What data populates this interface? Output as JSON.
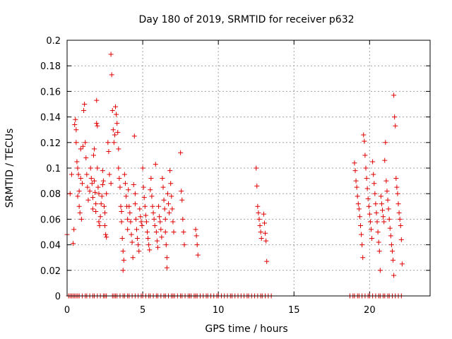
{
  "chart_data": {
    "type": "scatter",
    "title": "Day 180 of 2019, SRMTID for receiver p632",
    "xlabel": "GPS time / hours",
    "ylabel": "SRMTID / TECUs",
    "xlim": [
      0,
      24
    ],
    "ylim": [
      0,
      0.2
    ],
    "xticks": [
      0,
      5,
      10,
      15,
      20
    ],
    "xtick_labels": [
      "0",
      "5",
      "10",
      "15",
      "20"
    ],
    "yticks": [
      0,
      0.02,
      0.04,
      0.06,
      0.08,
      0.1,
      0.12,
      0.14,
      0.16,
      0.18,
      0.2
    ],
    "ytick_labels": [
      "0",
      "0.02",
      "0.04",
      "0.06",
      "0.08",
      "0.1",
      "0.12",
      "0.14",
      "0.16",
      "0.18",
      "0.2"
    ],
    "grid": true,
    "marker": "plus",
    "color": "#e00000",
    "series": [
      {
        "name": "SRMTID",
        "points": [
          [
            0.0,
            0.048
          ],
          [
            0.2,
            0.08
          ],
          [
            0.3,
            0.095
          ],
          [
            0.4,
            0.041
          ],
          [
            0.45,
            0.052
          ],
          [
            0.5,
            0.134
          ],
          [
            0.55,
            0.138
          ],
          [
            0.6,
            0.13
          ],
          [
            0.6,
            0.12
          ],
          [
            0.65,
            0.105
          ],
          [
            0.7,
            0.1
          ],
          [
            0.7,
            0.078
          ],
          [
            0.75,
            0.095
          ],
          [
            0.8,
            0.082
          ],
          [
            0.8,
            0.07
          ],
          [
            0.85,
            0.065
          ],
          [
            0.9,
            0.092
          ],
          [
            0.9,
            0.115
          ],
          [
            0.95,
            0.06
          ],
          [
            1.0,
            0.088
          ],
          [
            1.05,
            0.117
          ],
          [
            1.1,
            0.145
          ],
          [
            1.15,
            0.15
          ],
          [
            1.2,
            0.12
          ],
          [
            1.25,
            0.108
          ],
          [
            1.3,
            0.095
          ],
          [
            1.35,
            0.085
          ],
          [
            1.4,
            0.075
          ],
          [
            1.5,
            0.082
          ],
          [
            1.55,
            0.1
          ],
          [
            1.6,
            0.092
          ],
          [
            1.65,
            0.088
          ],
          [
            1.7,
            0.077
          ],
          [
            1.7,
            0.068
          ],
          [
            1.75,
            0.11
          ],
          [
            1.8,
            0.115
          ],
          [
            1.8,
            0.09
          ],
          [
            1.85,
            0.081
          ],
          [
            1.9,
            0.072
          ],
          [
            1.9,
            0.066
          ],
          [
            1.95,
            0.135
          ],
          [
            1.95,
            0.153
          ],
          [
            2.0,
            0.133
          ],
          [
            2.0,
            0.1
          ],
          [
            2.05,
            0.085
          ],
          [
            2.1,
            0.08
          ],
          [
            2.1,
            0.058
          ],
          [
            2.15,
            0.055
          ],
          [
            2.2,
            0.062
          ],
          [
            2.25,
            0.072
          ],
          [
            2.3,
            0.078
          ],
          [
            2.35,
            0.087
          ],
          [
            2.35,
            0.098
          ],
          [
            2.4,
            0.09
          ],
          [
            2.45,
            0.07
          ],
          [
            2.5,
            0.065
          ],
          [
            2.5,
            0.055
          ],
          [
            2.55,
            0.048
          ],
          [
            2.6,
            0.046
          ],
          [
            2.6,
            0.08
          ],
          [
            2.7,
            0.12
          ],
          [
            2.75,
            0.113
          ],
          [
            2.8,
            0.095
          ],
          [
            2.9,
            0.088
          ],
          [
            2.9,
            0.189
          ],
          [
            2.95,
            0.173
          ],
          [
            3.0,
            0.145
          ],
          [
            3.05,
            0.13
          ],
          [
            3.1,
            0.12
          ],
          [
            3.15,
            0.126
          ],
          [
            3.2,
            0.148
          ],
          [
            3.25,
            0.142
          ],
          [
            3.3,
            0.135
          ],
          [
            3.35,
            0.128
          ],
          [
            3.4,
            0.115
          ],
          [
            3.4,
            0.1
          ],
          [
            3.45,
            0.092
          ],
          [
            3.5,
            0.085
          ],
          [
            3.55,
            0.07
          ],
          [
            3.6,
            0.066
          ],
          [
            3.6,
            0.058
          ],
          [
            3.65,
            0.045
          ],
          [
            3.7,
            0.035
          ],
          [
            3.7,
            0.02
          ],
          [
            3.75,
            0.028
          ],
          [
            3.8,
            0.095
          ],
          [
            3.85,
            0.088
          ],
          [
            3.9,
            0.078
          ],
          [
            3.95,
            0.07
          ],
          [
            4.0,
            0.06
          ],
          [
            4.0,
            0.052
          ],
          [
            4.05,
            0.083
          ],
          [
            4.1,
            0.07
          ],
          [
            4.15,
            0.065
          ],
          [
            4.2,
            0.058
          ],
          [
            4.25,
            0.048
          ],
          [
            4.3,
            0.042
          ],
          [
            4.35,
            0.03
          ],
          [
            4.4,
            0.087
          ],
          [
            4.45,
            0.125
          ],
          [
            4.5,
            0.08
          ],
          [
            4.5,
            0.072
          ],
          [
            4.55,
            0.06
          ],
          [
            4.6,
            0.052
          ],
          [
            4.65,
            0.045
          ],
          [
            4.7,
            0.04
          ],
          [
            4.75,
            0.035
          ],
          [
            4.8,
            0.068
          ],
          [
            4.85,
            0.062
          ],
          [
            4.9,
            0.058
          ],
          [
            4.95,
            0.055
          ],
          [
            5.0,
            0.1
          ],
          [
            5.05,
            0.085
          ],
          [
            5.1,
            0.077
          ],
          [
            5.15,
            0.07
          ],
          [
            5.2,
            0.063
          ],
          [
            5.25,
            0.058
          ],
          [
            5.3,
            0.05
          ],
          [
            5.35,
            0.045
          ],
          [
            5.4,
            0.04
          ],
          [
            5.45,
            0.036
          ],
          [
            5.5,
            0.083
          ],
          [
            5.55,
            0.092
          ],
          [
            5.6,
            0.078
          ],
          [
            5.65,
            0.07
          ],
          [
            5.7,
            0.065
          ],
          [
            5.75,
            0.06
          ],
          [
            5.8,
            0.055
          ],
          [
            5.85,
            0.103
          ],
          [
            5.9,
            0.05
          ],
          [
            5.95,
            0.043
          ],
          [
            6.0,
            0.038
          ],
          [
            6.05,
            0.07
          ],
          [
            6.1,
            0.062
          ],
          [
            6.15,
            0.058
          ],
          [
            6.2,
            0.052
          ],
          [
            6.25,
            0.046
          ],
          [
            6.3,
            0.092
          ],
          [
            6.35,
            0.085
          ],
          [
            6.4,
            0.075
          ],
          [
            6.45,
            0.068
          ],
          [
            6.5,
            0.06
          ],
          [
            6.5,
            0.05
          ],
          [
            6.55,
            0.04
          ],
          [
            6.6,
            0.03
          ],
          [
            6.6,
            0.022
          ],
          [
            6.65,
            0.08
          ],
          [
            6.7,
            0.072
          ],
          [
            6.75,
            0.065
          ],
          [
            6.8,
            0.098
          ],
          [
            6.85,
            0.088
          ],
          [
            6.9,
            0.078
          ],
          [
            6.95,
            0.068
          ],
          [
            7.0,
            0.058
          ],
          [
            7.05,
            0.05
          ],
          [
            7.5,
            0.112
          ],
          [
            7.55,
            0.082
          ],
          [
            7.6,
            0.075
          ],
          [
            7.65,
            0.06
          ],
          [
            7.7,
            0.05
          ],
          [
            7.75,
            0.04
          ],
          [
            8.5,
            0.052
          ],
          [
            8.55,
            0.047
          ],
          [
            8.6,
            0.04
          ],
          [
            8.65,
            0.032
          ],
          [
            12.5,
            0.1
          ],
          [
            12.55,
            0.086
          ],
          [
            12.6,
            0.07
          ],
          [
            12.65,
            0.065
          ],
          [
            12.7,
            0.06
          ],
          [
            12.75,
            0.055
          ],
          [
            12.8,
            0.05
          ],
          [
            12.85,
            0.045
          ],
          [
            13.0,
            0.064
          ],
          [
            13.05,
            0.057
          ],
          [
            13.1,
            0.049
          ],
          [
            13.15,
            0.043
          ],
          [
            13.2,
            0.027
          ],
          [
            19.0,
            0.104
          ],
          [
            19.05,
            0.098
          ],
          [
            19.1,
            0.09
          ],
          [
            19.15,
            0.085
          ],
          [
            19.2,
            0.078
          ],
          [
            19.25,
            0.072
          ],
          [
            19.3,
            0.068
          ],
          [
            19.35,
            0.062
          ],
          [
            19.4,
            0.055
          ],
          [
            19.45,
            0.048
          ],
          [
            19.5,
            0.04
          ],
          [
            19.55,
            0.03
          ],
          [
            19.6,
            0.126
          ],
          [
            19.65,
            0.121
          ],
          [
            19.7,
            0.11
          ],
          [
            19.75,
            0.1
          ],
          [
            19.8,
            0.092
          ],
          [
            19.85,
            0.084
          ],
          [
            19.9,
            0.076
          ],
          [
            19.95,
            0.07
          ],
          [
            20.0,
            0.064
          ],
          [
            20.05,
            0.058
          ],
          [
            20.1,
            0.052
          ],
          [
            20.15,
            0.045
          ],
          [
            20.2,
            0.105
          ],
          [
            20.25,
            0.095
          ],
          [
            20.3,
            0.088
          ],
          [
            20.35,
            0.08
          ],
          [
            20.4,
            0.072
          ],
          [
            20.45,
            0.065
          ],
          [
            20.5,
            0.058
          ],
          [
            20.55,
            0.05
          ],
          [
            20.6,
            0.042
          ],
          [
            20.65,
            0.035
          ],
          [
            20.7,
            0.02
          ],
          [
            20.75,
            0.078
          ],
          [
            20.8,
            0.072
          ],
          [
            20.85,
            0.067
          ],
          [
            20.9,
            0.062
          ],
          [
            20.95,
            0.058
          ],
          [
            21.0,
            0.106
          ],
          [
            21.05,
            0.12
          ],
          [
            21.1,
            0.09
          ],
          [
            21.15,
            0.082
          ],
          [
            21.2,
            0.075
          ],
          [
            21.25,
            0.068
          ],
          [
            21.3,
            0.06
          ],
          [
            21.35,
            0.053
          ],
          [
            21.4,
            0.047
          ],
          [
            21.45,
            0.04
          ],
          [
            21.5,
            0.035
          ],
          [
            21.55,
            0.028
          ],
          [
            21.6,
            0.157
          ],
          [
            21.65,
            0.14
          ],
          [
            21.7,
            0.133
          ],
          [
            21.75,
            0.092
          ],
          [
            21.8,
            0.085
          ],
          [
            21.85,
            0.08
          ],
          [
            21.9,
            0.072
          ],
          [
            21.95,
            0.065
          ],
          [
            22.0,
            0.06
          ],
          [
            22.05,
            0.055
          ],
          [
            22.1,
            0.044
          ],
          [
            22.15,
            0.025
          ],
          [
            21.6,
            0.016
          ]
        ]
      }
    ],
    "zero_markers_x": [
      0.1,
      0.2,
      0.3,
      0.4,
      0.5,
      0.6,
      0.7,
      0.8,
      1.0,
      1.2,
      1.3,
      1.5,
      1.7,
      1.8,
      2.0,
      2.2,
      2.4,
      2.5,
      2.6,
      3.0,
      3.1,
      3.2,
      3.3,
      3.5,
      3.7,
      3.8,
      4.0,
      4.1,
      4.3,
      4.5,
      4.7,
      4.9,
      5.0,
      5.2,
      5.4,
      5.5,
      5.7,
      5.9,
      6.0,
      6.2,
      6.4,
      6.5,
      6.7,
      6.9,
      7.0,
      7.1,
      7.3,
      7.5,
      7.6,
      7.8,
      8.0,
      8.1,
      8.2,
      8.4,
      8.5,
      8.6,
      8.8,
      9.0,
      9.2,
      9.3,
      9.5,
      9.7,
      9.9,
      10.0,
      10.2,
      10.4,
      10.6,
      10.8,
      10.9,
      11.1,
      11.3,
      11.5,
      11.7,
      11.9,
      12.0,
      12.2,
      12.4,
      12.6,
      12.8,
      12.9,
      13.1,
      13.3,
      13.5,
      18.7,
      18.9,
      19.0,
      19.2,
      19.3,
      19.5,
      19.7,
      19.9,
      20.0,
      20.2,
      20.4,
      20.6,
      20.7,
      20.9,
      21.0,
      21.2,
      21.3,
      21.5,
      21.7,
      21.9,
      22.1
    ]
  }
}
